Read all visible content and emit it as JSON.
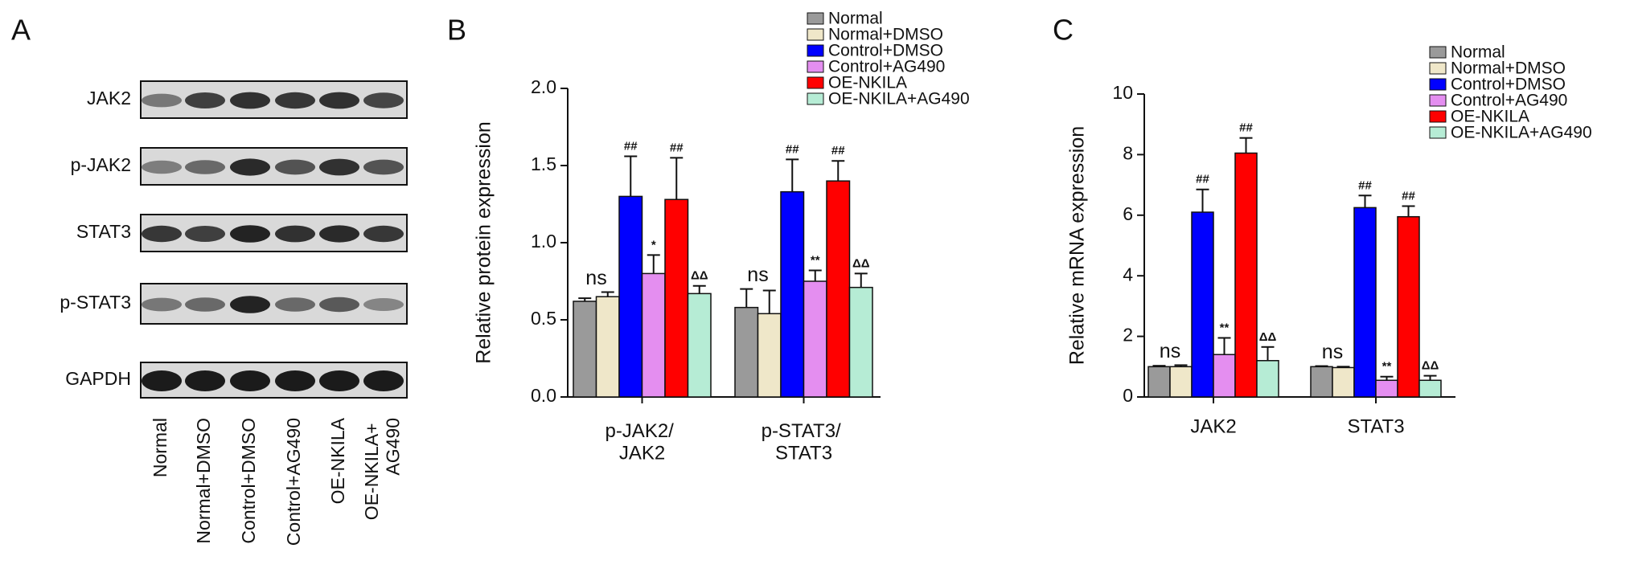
{
  "blot": {
    "label": "A",
    "rows": [
      "JAK2",
      "p-JAK2",
      "STAT3",
      "p-STAT3",
      "GAPDH"
    ],
    "lanes": [
      "Normal",
      "Normal+DMSO",
      "Control+DMSO",
      "Control+AG490",
      "OE-NKILA",
      "OE-NKILA+\nAG490"
    ]
  },
  "chart_data": [
    {
      "type": "bar",
      "label": "B",
      "y_label": "Relative protein expression",
      "categories": [
        "p-JAK2/\nJAK2",
        "p-STAT3/\nSTAT3"
      ],
      "ylim": [
        0,
        2.0
      ],
      "yticks": [
        {
          "value": 0,
          "label": "0.0"
        },
        0.5,
        {
          "value": 1,
          "label": "1.0"
        },
        1.5,
        {
          "value": 2,
          "label": "2.0"
        }
      ],
      "legend": "top",
      "group_annotations": [
        "ns",
        "ns"
      ],
      "series": [
        {
          "name": "Normal",
          "color": "#9a9a9a",
          "values": [
            0.62,
            0.58
          ],
          "errors": [
            0.02,
            0.12
          ],
          "annotations": [
            null,
            null
          ]
        },
        {
          "name": "Normal+DMSO",
          "color": "#efe7c9",
          "values": [
            0.65,
            0.54
          ],
          "errors": [
            0.03,
            0.15
          ],
          "annotations": [
            null,
            null
          ]
        },
        {
          "name": "Control+DMSO",
          "color": "#0000ff",
          "values": [
            1.3,
            1.33
          ],
          "errors": [
            0.26,
            0.21
          ],
          "annotations": [
            "##",
            "##"
          ]
        },
        {
          "name": "Control+AG490",
          "color": "#e48ef0",
          "values": [
            0.8,
            0.75
          ],
          "errors": [
            0.12,
            0.07
          ],
          "annotations": [
            "*",
            "**"
          ]
        },
        {
          "name": "OE-NKILA",
          "color": "#ff0000",
          "values": [
            1.28,
            1.4
          ],
          "errors": [
            0.27,
            0.13
          ],
          "annotations": [
            "##",
            "##"
          ]
        },
        {
          "name": "OE-NKILA+AG490",
          "color": "#b6ecd5",
          "values": [
            0.67,
            0.71
          ],
          "errors": [
            0.05,
            0.09
          ],
          "annotations": [
            "ΔΔ",
            "ΔΔ"
          ]
        }
      ]
    },
    {
      "type": "bar",
      "label": "C",
      "y_label": "Relative mRNA expression",
      "categories": [
        "JAK2",
        "STAT3"
      ],
      "ylim": [
        0,
        10
      ],
      "yticks": [
        0,
        2,
        4,
        6,
        8,
        10
      ],
      "legend": "top",
      "group_annotations": [
        "ns",
        "ns"
      ],
      "series": [
        {
          "name": "Normal",
          "color": "#9a9a9a",
          "values": [
            1.0,
            1.0
          ],
          "errors": [
            0.03,
            0.02
          ],
          "annotations": [
            null,
            null
          ]
        },
        {
          "name": "Normal+DMSO",
          "color": "#efe7c9",
          "values": [
            1.0,
            0.97
          ],
          "errors": [
            0.05,
            0.03
          ],
          "annotations": [
            null,
            null
          ]
        },
        {
          "name": "Control+DMSO",
          "color": "#0000ff",
          "values": [
            6.1,
            6.25
          ],
          "errors": [
            0.75,
            0.4
          ],
          "annotations": [
            "##",
            "##"
          ]
        },
        {
          "name": "Control+AG490",
          "color": "#e48ef0",
          "values": [
            1.4,
            0.55
          ],
          "errors": [
            0.55,
            0.12
          ],
          "annotations": [
            "**",
            "**"
          ]
        },
        {
          "name": "OE-NKILA",
          "color": "#ff0000",
          "values": [
            8.05,
            5.95
          ],
          "errors": [
            0.5,
            0.35
          ],
          "annotations": [
            "##",
            "##"
          ]
        },
        {
          "name": "OE-NKILA+AG490",
          "color": "#b6ecd5",
          "values": [
            1.2,
            0.55
          ],
          "errors": [
            0.45,
            0.15
          ],
          "annotations": [
            "ΔΔ",
            "ΔΔ"
          ]
        }
      ]
    }
  ]
}
